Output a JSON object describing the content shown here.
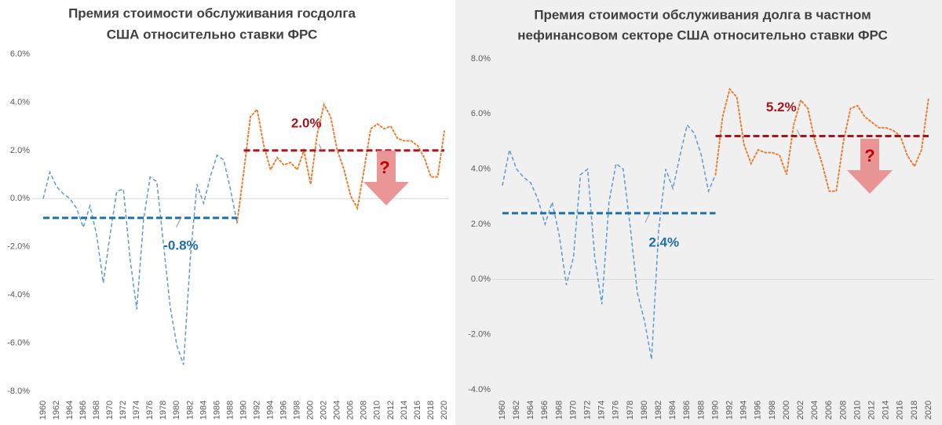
{
  "chart_data": [
    {
      "type": "line",
      "title": [
        "Премия стоимости обслуживания госдолга",
        "США относительно ставки ФРС"
      ],
      "xlim": [
        1960,
        2020
      ],
      "xticks": [
        1960,
        1962,
        1964,
        1966,
        1968,
        1970,
        1972,
        1974,
        1976,
        1978,
        1980,
        1982,
        1984,
        1986,
        1988,
        1990,
        1992,
        1994,
        1996,
        1998,
        2000,
        2002,
        2004,
        2006,
        2008,
        2010,
        2012,
        2014,
        2016,
        2018,
        2020
      ],
      "ylim": [
        -8,
        6
      ],
      "yticks": [
        {
          "value": -8,
          "label": "-8.0%"
        },
        {
          "value": -6,
          "label": "-6.0%"
        },
        {
          "value": -4,
          "label": "-4.0%"
        },
        {
          "value": -2,
          "label": "-2.0%"
        },
        {
          "value": 0,
          "label": "0.0%"
        },
        {
          "value": 2,
          "label": "2.0%"
        },
        {
          "value": 4,
          "label": "4.0%"
        },
        {
          "value": 6,
          "label": "6.0%"
        }
      ],
      "zero_line": true,
      "series": [
        {
          "color": "#5b9bd5",
          "style": "dashed",
          "x": [
            1960,
            1961,
            1962,
            1963,
            1964,
            1965,
            1966,
            1967,
            1968,
            1969,
            1970,
            1971,
            1972,
            1973,
            1974,
            1975,
            1976,
            1977,
            1978,
            1979,
            1980,
            1981,
            1982,
            1983,
            1984,
            1985,
            1986,
            1987,
            1988,
            1989
          ],
          "values": [
            0,
            1.1,
            0.5,
            0.2,
            0.0,
            -0.4,
            -1.2,
            -0.3,
            -1.5,
            -3.5,
            -1.5,
            0.3,
            0.4,
            -2.5,
            -4.6,
            -0.9,
            0.9,
            0.7,
            -1.9,
            -4.5,
            -6.1,
            -6.9,
            -2.5,
            0.6,
            -0.2,
            0.9,
            1.8,
            1.6,
            0.4,
            -1.0
          ]
        },
        {
          "color": "#ed7d31",
          "style": "dotted",
          "x": [
            1989,
            1990,
            1991,
            1992,
            1993,
            1994,
            1995,
            1996,
            1997,
            1998,
            1999,
            2000,
            2001,
            2002,
            2003,
            2004,
            2005,
            2006,
            2007,
            2008,
            2009,
            2010,
            2011,
            2012,
            2013,
            2014,
            2015,
            2016,
            2017,
            2018,
            2019,
            2020
          ],
          "values": [
            -1.0,
            1.1,
            3.4,
            3.7,
            2.2,
            1.2,
            1.7,
            1.4,
            1.5,
            1.2,
            2.0,
            0.6,
            2.7,
            3.9,
            3.4,
            2.0,
            1.2,
            0.1,
            -0.4,
            1.2,
            2.9,
            3.1,
            2.9,
            3.0,
            2.5,
            2.4,
            2.4,
            2.2,
            1.7,
            0.9,
            0.9,
            2.8
          ]
        }
      ],
      "reference_lines": [
        {
          "value": -0.8,
          "label": "-0.8%",
          "xrange": [
            1960,
            1989
          ],
          "color": "#1f6fa8"
        },
        {
          "value": 2.0,
          "label": "2.0%",
          "xrange": [
            1990,
            2020
          ],
          "color": "#a8141b"
        }
      ],
      "annotation": "?"
    },
    {
      "type": "line",
      "title": [
        "Премия стоимости обслуживания долга в частном",
        "нефинансовом секторе США относительно ставки ФРС"
      ],
      "xlim": [
        1960,
        2020
      ],
      "xticks": [
        1960,
        1962,
        1964,
        1966,
        1968,
        1970,
        1972,
        1974,
        1976,
        1978,
        1980,
        1982,
        1984,
        1986,
        1988,
        1990,
        1992,
        1994,
        1996,
        1998,
        2000,
        2002,
        2004,
        2006,
        2008,
        2010,
        2012,
        2014,
        2016,
        2018,
        2020
      ],
      "ylim": [
        -4,
        8
      ],
      "yticks": [
        {
          "value": -4,
          "label": "-4.0%"
        },
        {
          "value": -2,
          "label": "-2.0%"
        },
        {
          "value": 0,
          "label": "0.0%"
        },
        {
          "value": 2,
          "label": "2.0%"
        },
        {
          "value": 4,
          "label": "4.0%"
        },
        {
          "value": 6,
          "label": "6.0%"
        },
        {
          "value": 8,
          "label": "8.0%"
        }
      ],
      "zero_line": true,
      "series": [
        {
          "color": "#5b9bd5",
          "style": "dashed",
          "x": [
            1960,
            1961,
            1962,
            1963,
            1964,
            1965,
            1966,
            1967,
            1968,
            1969,
            1970,
            1971,
            1972,
            1973,
            1974,
            1975,
            1976,
            1977,
            1978,
            1979,
            1980,
            1981,
            1982,
            1983,
            1984,
            1985,
            1986,
            1987,
            1988,
            1989,
            1990
          ],
          "values": [
            3.4,
            4.7,
            4.0,
            3.7,
            3.5,
            2.9,
            2.0,
            2.8,
            1.6,
            -0.2,
            0.8,
            3.8,
            4.0,
            0.8,
            -0.9,
            2.8,
            4.2,
            4.0,
            1.9,
            -0.5,
            -1.5,
            -2.9,
            1.8,
            4.0,
            3.3,
            4.5,
            5.6,
            5.3,
            4.5,
            3.2,
            3.8
          ]
        },
        {
          "color": "#ed7d31",
          "style": "dotted",
          "x": [
            1990,
            1991,
            1992,
            1993,
            1994,
            1995,
            1996,
            1997,
            1998,
            1999,
            2000,
            2001,
            2002,
            2003,
            2004,
            2005,
            2006,
            2007,
            2008,
            2009,
            2010,
            2011,
            2012,
            2013,
            2014,
            2015,
            2016,
            2017,
            2018,
            2019,
            2020
          ],
          "values": [
            3.8,
            5.9,
            6.9,
            6.6,
            4.9,
            4.2,
            4.7,
            4.6,
            4.6,
            4.5,
            3.8,
            5.6,
            6.5,
            6.2,
            5.0,
            4.2,
            3.2,
            3.2,
            5.0,
            6.2,
            6.3,
            5.9,
            5.7,
            5.5,
            5.5,
            5.4,
            5.2,
            4.5,
            4.1,
            4.7,
            6.6
          ]
        }
      ],
      "reference_lines": [
        {
          "value": 2.4,
          "label": "2.4%",
          "xrange": [
            1960,
            1990
          ],
          "color": "#1f6fa8"
        },
        {
          "value": 5.2,
          "label": "5.2%",
          "xrange": [
            1990,
            2020
          ],
          "color": "#a8141b"
        }
      ],
      "annotation": "?"
    }
  ]
}
